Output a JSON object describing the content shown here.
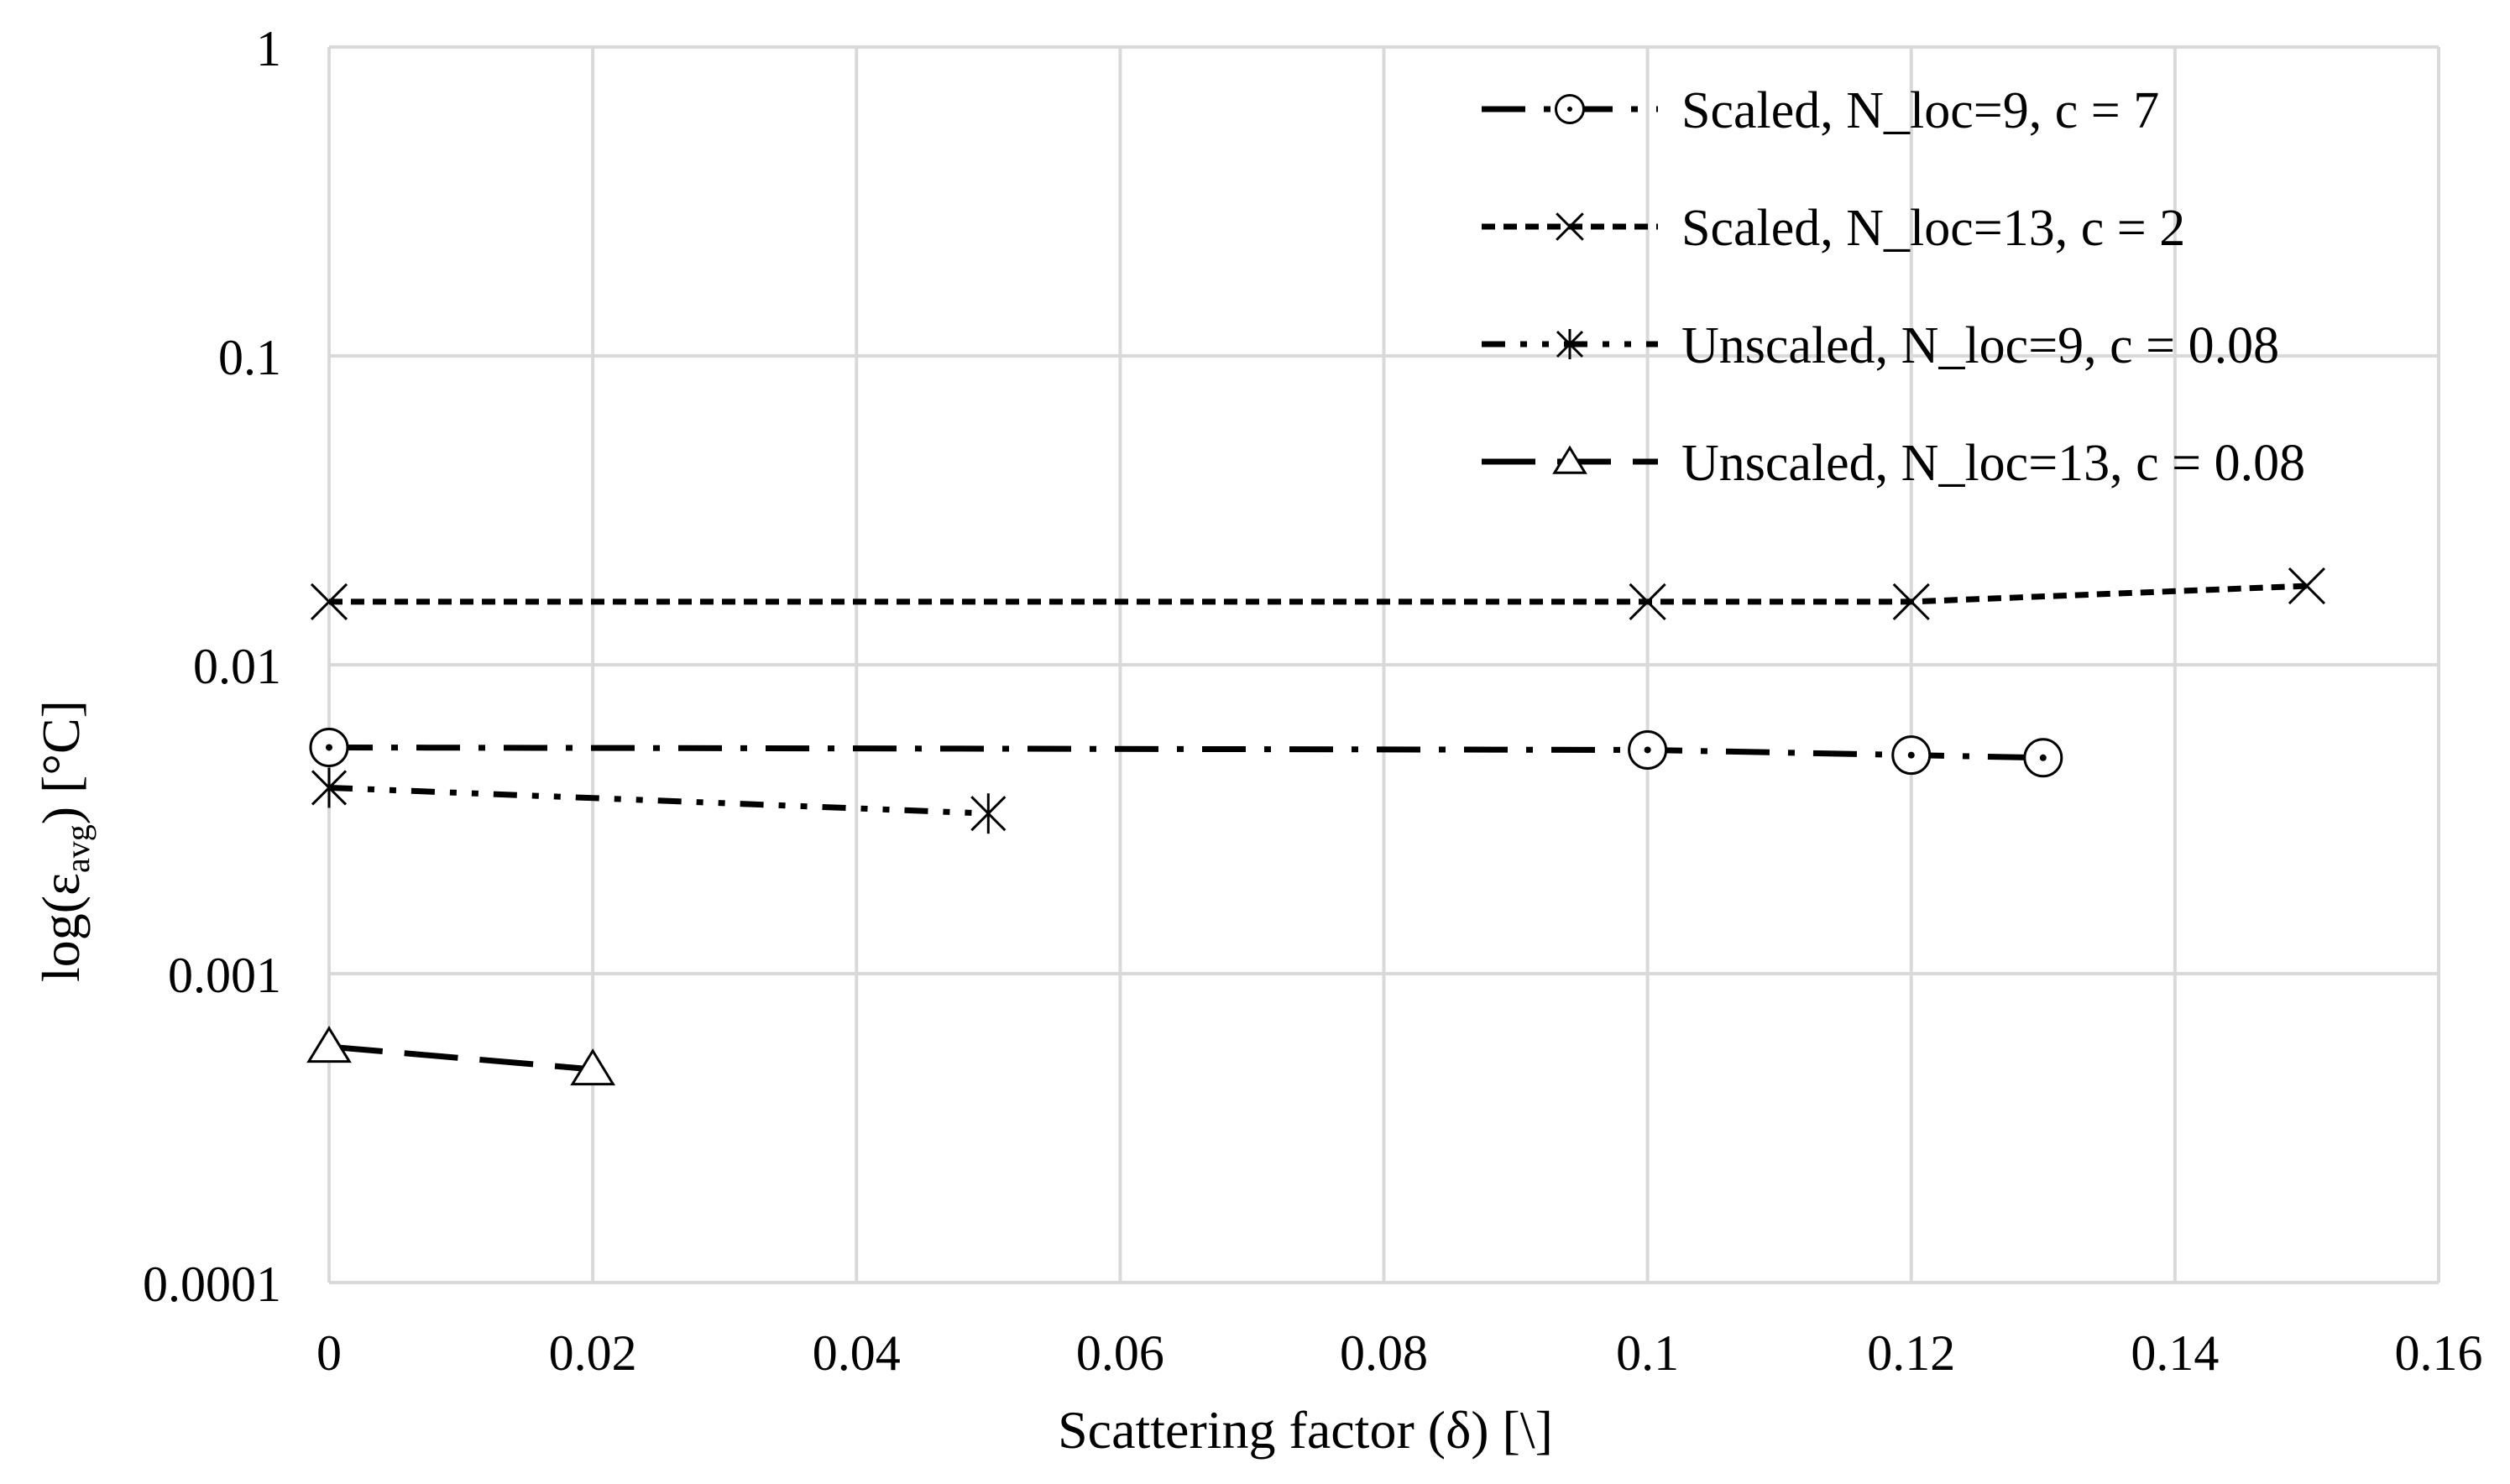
{
  "chart_data": {
    "type": "line",
    "title": "",
    "xlabel": "Scattering factor (δ) [\\]",
    "ylabel": {
      "prefix": "log(ε",
      "subscript": "avg",
      "suffix": ") [°C]"
    },
    "xlim": [
      0,
      0.16
    ],
    "ylim": [
      0.0001,
      1
    ],
    "yscale": "log",
    "grid": true,
    "legend_position": "top-right",
    "x_ticks": [
      0,
      0.02,
      0.04,
      0.06,
      0.08,
      0.1,
      0.12,
      0.14,
      0.16
    ],
    "x_tick_labels": [
      "0",
      "0.02",
      "0.04",
      "0.06",
      "0.08",
      "0.1",
      "0.12",
      "0.14",
      "0.16"
    ],
    "y_ticks": [
      0.0001,
      0.001,
      0.01,
      0.1,
      1
    ],
    "y_tick_labels": [
      "0.0001",
      "0.001",
      "0.01",
      "0.1",
      "1"
    ],
    "series": [
      {
        "name": "Scaled, N_loc=9, c = 7",
        "marker": "circle-dot",
        "dash": "dash-dot",
        "x": [
          0,
          0.1,
          0.12,
          0.13
        ],
        "y": [
          0.0054,
          0.0053,
          0.0051,
          0.005
        ]
      },
      {
        "name": "Scaled, N_loc=13, c = 2",
        "marker": "x",
        "dash": "short-dash",
        "x": [
          0,
          0.1,
          0.12,
          0.15
        ],
        "y": [
          0.016,
          0.016,
          0.016,
          0.018
        ]
      },
      {
        "name": "Unscaled, N_loc=9, c = 0.08",
        "marker": "asterisk",
        "dash": "dash-dot-dot",
        "x": [
          0,
          0.05
        ],
        "y": [
          0.004,
          0.0033
        ]
      },
      {
        "name": "Unscaled, N_loc=13, c = 0.08",
        "marker": "triangle",
        "dash": "long-dash",
        "x": [
          0,
          0.02
        ],
        "y": [
          0.00058,
          0.00049
        ]
      }
    ],
    "colors": {
      "line": "#000000",
      "grid": "#d9d9d9",
      "background": "#ffffff"
    }
  }
}
